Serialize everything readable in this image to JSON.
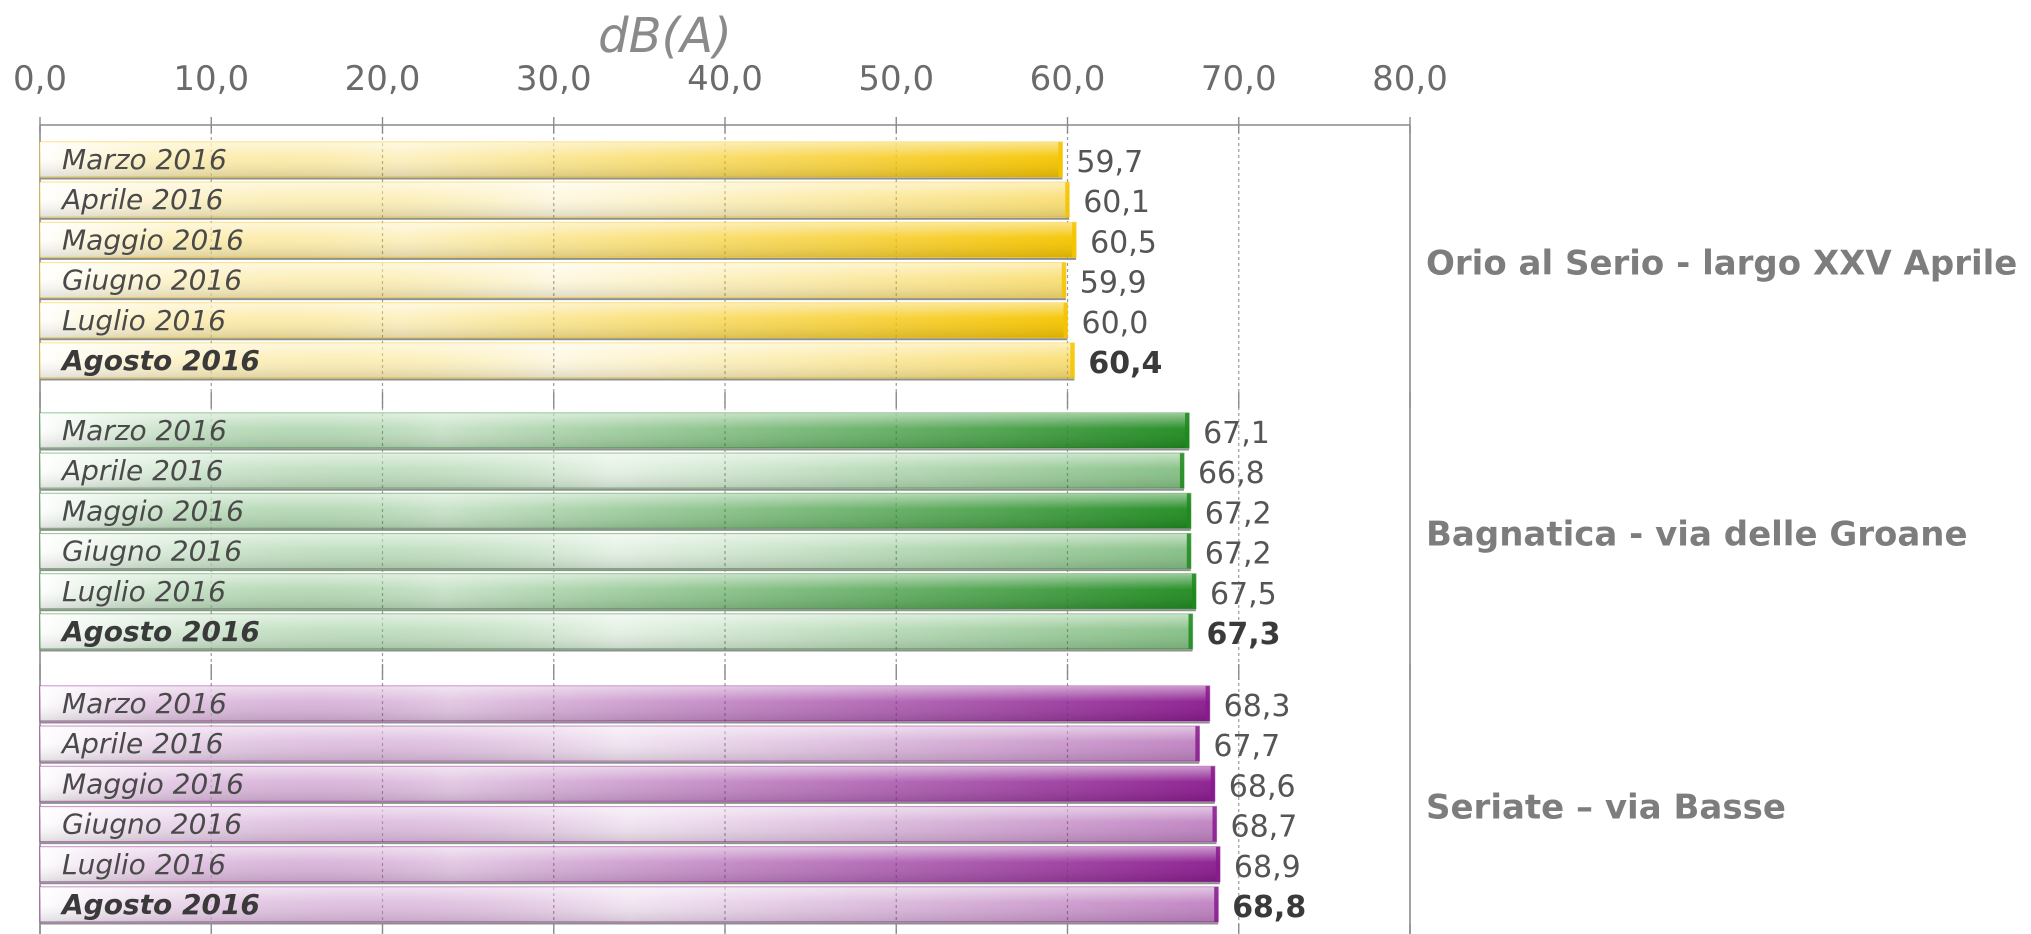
{
  "chart_data": {
    "type": "bar",
    "orientation": "horizontal",
    "x_unit_label": "dB(A)",
    "xlim": [
      0,
      80
    ],
    "x_ticks": [
      "0,0",
      "10,0",
      "20,0",
      "30,0",
      "40,0",
      "50,0",
      "60,0",
      "70,0",
      "80,0"
    ],
    "grid": "vertical dotted",
    "groups": [
      {
        "name": "Orio al Serio - largo XXV Aprile",
        "color": "#f5c400",
        "bars": [
          {
            "label": "Marzo 2016",
            "value": 59.7,
            "text": "59,7",
            "emphasis": false
          },
          {
            "label": "Aprile 2016",
            "value": 60.1,
            "text": "60,1",
            "emphasis": false
          },
          {
            "label": "Maggio 2016",
            "value": 60.5,
            "text": "60,5",
            "emphasis": false
          },
          {
            "label": "Giugno 2016",
            "value": 59.9,
            "text": "59,9",
            "emphasis": false
          },
          {
            "label": "Luglio 2016",
            "value": 60.0,
            "text": "60,0",
            "emphasis": false
          },
          {
            "label": "Agosto 2016",
            "value": 60.4,
            "text": "60,4",
            "emphasis": true
          }
        ]
      },
      {
        "name": "Bagnatica - via delle Groane",
        "color": "#1f8a1f",
        "bars": [
          {
            "label": "Marzo 2016",
            "value": 67.1,
            "text": "67,1",
            "emphasis": false
          },
          {
            "label": "Aprile 2016",
            "value": 66.8,
            "text": "66,8",
            "emphasis": false
          },
          {
            "label": "Maggio 2016",
            "value": 67.2,
            "text": "67,2",
            "emphasis": false
          },
          {
            "label": "Giugno 2016",
            "value": 67.2,
            "text": "67,2",
            "emphasis": false
          },
          {
            "label": "Luglio 2016",
            "value": 67.5,
            "text": "67,5",
            "emphasis": false
          },
          {
            "label": "Agosto 2016",
            "value": 67.3,
            "text": "67,3",
            "emphasis": true
          }
        ]
      },
      {
        "name": "Seriate – via Basse",
        "color": "#8a1a8e",
        "bars": [
          {
            "label": "Marzo 2016",
            "value": 68.3,
            "text": "68,3",
            "emphasis": false
          },
          {
            "label": "Aprile 2016",
            "value": 67.7,
            "text": "67,7",
            "emphasis": false
          },
          {
            "label": "Maggio 2016",
            "value": 68.6,
            "text": "68,6",
            "emphasis": false
          },
          {
            "label": "Giugno 2016",
            "value": 68.7,
            "text": "68,7",
            "emphasis": false
          },
          {
            "label": "Luglio 2016",
            "value": 68.9,
            "text": "68,9",
            "emphasis": false
          },
          {
            "label": "Agosto 2016",
            "value": 68.8,
            "text": "68,8",
            "emphasis": true
          }
        ]
      }
    ]
  }
}
